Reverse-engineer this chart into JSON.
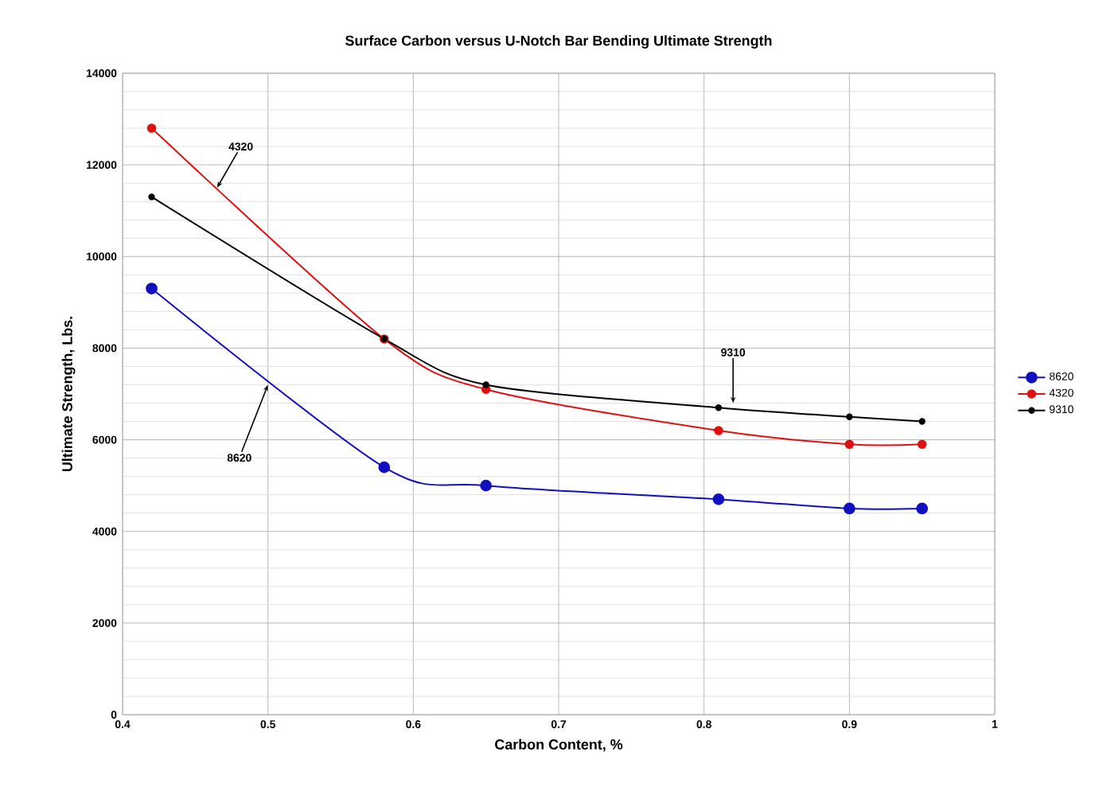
{
  "chart_data": {
    "type": "line",
    "title": "Surface Carbon versus U-Notch Bar Bending Ultimate Strength",
    "xlabel": "Carbon Content, %",
    "ylabel": "Ultimate Strength, Lbs.",
    "x": [
      0.42,
      0.58,
      0.65,
      0.81,
      0.9,
      0.95
    ],
    "series": [
      {
        "name": "8620",
        "color": "#1010c0",
        "values": [
          9300,
          5400,
          5000,
          4700,
          4500,
          4500
        ]
      },
      {
        "name": "4320",
        "color": "#e01010",
        "values": [
          12800,
          8200,
          7100,
          6200,
          5900,
          5900
        ]
      },
      {
        "name": "9310",
        "color": "#000000",
        "values": [
          11300,
          8200,
          7200,
          6700,
          6500,
          6400
        ]
      }
    ],
    "annotations": [
      {
        "text": "4320",
        "x": 0.465,
        "y": 11500
      },
      {
        "text": "9310",
        "x": 0.82,
        "y": 6800
      },
      {
        "text": "8620",
        "x": 0.5,
        "y": 7200
      }
    ],
    "xlim": [
      0.4,
      1
    ],
    "ylim": [
      0,
      14000
    ],
    "xticks": [
      0.4,
      0.5,
      0.6,
      0.7,
      0.8,
      0.9,
      1
    ],
    "yticks": [
      0,
      2000,
      4000,
      6000,
      8000,
      10000,
      12000,
      14000
    ],
    "grid": true,
    "legend": "right",
    "marker": "circle",
    "line_style": "solid"
  }
}
